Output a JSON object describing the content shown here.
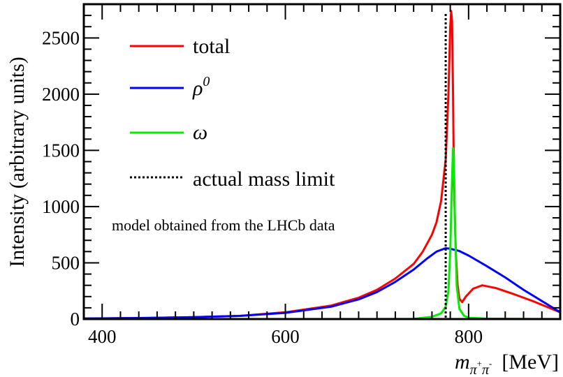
{
  "chart_data": {
    "type": "line",
    "title": "",
    "ylabel": "Intensity (arbitrary units)",
    "xlabel": {
      "symbol": "m",
      "subscript_base": "π",
      "sup1": "+",
      "sub_base2": "π",
      "sup2": "-",
      "unit": "[MeV]"
    },
    "xlim": [
      380,
      900
    ],
    "ylim": [
      0,
      2800
    ],
    "xticks": [
      400,
      600,
      800
    ],
    "yticks": [
      0,
      500,
      1000,
      1500,
      2000,
      2500
    ],
    "grid": false,
    "legend_position": "top-left",
    "annotation": "model obtained from the LHCb data",
    "series": [
      {
        "name": "total",
        "color": "#ff0000",
        "points": [
          [
            380,
            5
          ],
          [
            400,
            6
          ],
          [
            450,
            10
          ],
          [
            500,
            17
          ],
          [
            550,
            28
          ],
          [
            600,
            60
          ],
          [
            650,
            120
          ],
          [
            680,
            190
          ],
          [
            700,
            260
          ],
          [
            720,
            360
          ],
          [
            740,
            490
          ],
          [
            750,
            600
          ],
          [
            760,
            750
          ],
          [
            765,
            860
          ],
          [
            770,
            1050
          ],
          [
            775,
            1420
          ],
          [
            778,
            2000
          ],
          [
            780,
            2600
          ],
          [
            781,
            2740
          ],
          [
            782,
            2650
          ],
          [
            783,
            2000
          ],
          [
            784,
            1200
          ],
          [
            786,
            600
          ],
          [
            788,
            300
          ],
          [
            790,
            180
          ],
          [
            793,
            150
          ],
          [
            797,
            200
          ],
          [
            805,
            270
          ],
          [
            815,
            300
          ],
          [
            830,
            275
          ],
          [
            850,
            220
          ],
          [
            870,
            160
          ],
          [
            885,
            110
          ],
          [
            900,
            60
          ]
        ]
      },
      {
        "name": "ρ",
        "superscript": "0",
        "color": "#0000ff",
        "points": [
          [
            380,
            5
          ],
          [
            400,
            6
          ],
          [
            450,
            10
          ],
          [
            500,
            17
          ],
          [
            550,
            28
          ],
          [
            600,
            55
          ],
          [
            650,
            110
          ],
          [
            680,
            175
          ],
          [
            700,
            240
          ],
          [
            720,
            330
          ],
          [
            740,
            440
          ],
          [
            755,
            540
          ],
          [
            765,
            600
          ],
          [
            775,
            630
          ],
          [
            780,
            625
          ],
          [
            790,
            605
          ],
          [
            800,
            565
          ],
          [
            820,
            470
          ],
          [
            840,
            370
          ],
          [
            860,
            260
          ],
          [
            880,
            160
          ],
          [
            900,
            60
          ]
        ]
      },
      {
        "name": "ω",
        "color": "#00ee00",
        "points": [
          [
            380,
            0
          ],
          [
            700,
            0
          ],
          [
            740,
            2
          ],
          [
            760,
            20
          ],
          [
            770,
            50
          ],
          [
            775,
            110
          ],
          [
            778,
            250
          ],
          [
            780,
            600
          ],
          [
            782,
            1250
          ],
          [
            783,
            1520
          ],
          [
            784,
            1400
          ],
          [
            785,
            900
          ],
          [
            787,
            300
          ],
          [
            790,
            90
          ],
          [
            795,
            30
          ],
          [
            800,
            12
          ],
          [
            820,
            4
          ],
          [
            860,
            1
          ],
          [
            900,
            0
          ]
        ]
      }
    ],
    "reference_line": {
      "name": "actual mass limit",
      "x": 775,
      "color": "#000000",
      "style": "dotted"
    }
  }
}
